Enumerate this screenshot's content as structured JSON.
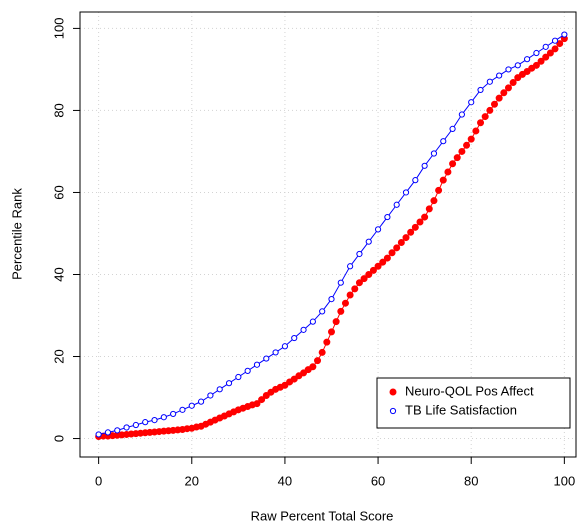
{
  "chart_data": {
    "type": "line",
    "x_label": "Raw Percent Total Score",
    "y_label": "Percentile Rank",
    "xlim": [
      -4,
      102.5
    ],
    "ylim": [
      -4.5,
      104
    ],
    "xticks": [
      0,
      20,
      40,
      60,
      80,
      100
    ],
    "yticks": [
      0,
      20,
      40,
      60,
      80,
      100
    ],
    "grid": true,
    "legend": "bottom-right",
    "series": [
      {
        "name": "Neuro-QOL Pos Affect",
        "color": "#ff0000",
        "marker": "filled",
        "x": [
          0,
          1,
          2,
          3,
          4,
          5,
          6,
          7,
          8,
          9,
          10,
          11,
          12,
          13,
          14,
          15,
          16,
          17,
          18,
          19,
          20,
          21,
          22,
          23,
          24,
          25,
          26,
          27,
          28,
          29,
          30,
          31,
          32,
          33,
          34,
          35,
          36,
          37,
          38,
          39,
          40,
          41,
          42,
          43,
          44,
          45,
          46,
          47,
          48,
          49,
          50,
          51,
          52,
          53,
          54,
          55,
          56,
          57,
          58,
          59,
          60,
          61,
          62,
          63,
          64,
          65,
          66,
          67,
          68,
          69,
          70,
          71,
          72,
          73,
          74,
          75,
          76,
          77,
          78,
          79,
          80,
          81,
          82,
          83,
          84,
          85,
          86,
          87,
          88,
          89,
          90,
          91,
          92,
          93,
          94,
          95,
          96,
          97,
          98,
          99,
          100
        ],
        "values": [
          0.5,
          0.6,
          0.6,
          0.7,
          0.8,
          0.9,
          1.0,
          1.1,
          1.2,
          1.3,
          1.4,
          1.5,
          1.6,
          1.7,
          1.8,
          1.9,
          2.0,
          2.1,
          2.2,
          2.4,
          2.5,
          2.8,
          3.0,
          3.5,
          4.0,
          4.5,
          5.0,
          5.5,
          6.0,
          6.5,
          7.0,
          7.4,
          7.8,
          8.2,
          8.5,
          9.5,
          10.5,
          11.3,
          12.0,
          12.5,
          13.0,
          13.8,
          14.5,
          15.3,
          16.0,
          16.8,
          17.5,
          19.0,
          21.0,
          23.5,
          26.0,
          28.5,
          31.0,
          33.0,
          35.0,
          36.5,
          38.0,
          39.0,
          40.0,
          41.0,
          42.0,
          43.0,
          44.0,
          45.3,
          46.5,
          47.8,
          49.0,
          50.3,
          51.5,
          52.8,
          54.0,
          56.0,
          58.0,
          60.5,
          63.0,
          65.0,
          67.0,
          68.5,
          70.0,
          71.5,
          73.0,
          75.0,
          77.0,
          78.5,
          80.0,
          81.5,
          83.0,
          84.3,
          85.5,
          86.8,
          88.0,
          88.8,
          89.5,
          90.3,
          91.0,
          92.0,
          93.0,
          94.0,
          95.0,
          96.3,
          97.5
        ]
      },
      {
        "name": "TB Life Satisfaction",
        "color": "#0000ff",
        "marker": "open",
        "x": [
          0,
          2,
          4,
          6,
          8,
          10,
          12,
          14,
          16,
          18,
          20,
          22,
          24,
          26,
          28,
          30,
          32,
          34,
          36,
          38,
          40,
          42,
          44,
          46,
          48,
          50,
          52,
          54,
          56,
          58,
          60,
          62,
          64,
          66,
          68,
          70,
          72,
          74,
          76,
          78,
          80,
          82,
          84,
          86,
          88,
          90,
          92,
          94,
          96,
          98,
          100
        ],
        "values": [
          1,
          1.5,
          2,
          2.7,
          3.3,
          4,
          4.5,
          5.2,
          6,
          7,
          8,
          9,
          10.5,
          12,
          13.5,
          15,
          16.5,
          18,
          19.5,
          21,
          22.5,
          24.5,
          26.5,
          28.5,
          31,
          34,
          38,
          42,
          45,
          48,
          51,
          54,
          57,
          60,
          63,
          66.5,
          69.5,
          72.5,
          75.5,
          79,
          82,
          85,
          87,
          88.5,
          90,
          91,
          92.5,
          94,
          95.5,
          97,
          98.5
        ]
      }
    ]
  }
}
